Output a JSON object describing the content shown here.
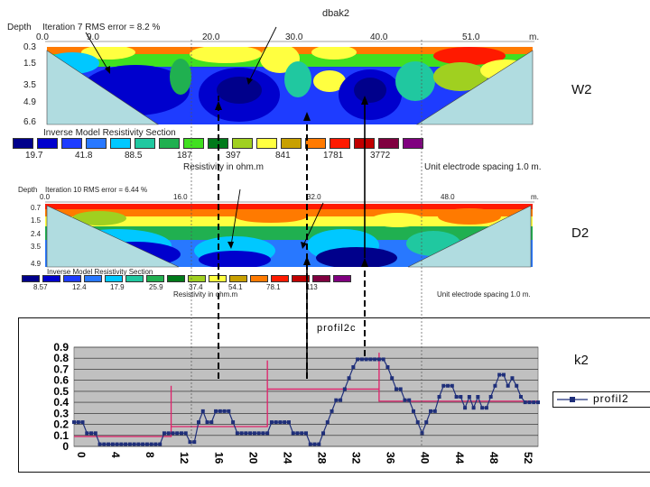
{
  "top_section": {
    "title": "dbak2",
    "depth_label": "Depth",
    "iteration_text": "Iteration 7 RMS error = 8.2 %",
    "distance_ticks": [
      "0.0",
      "9.0",
      "20.0",
      "30.0",
      "40.0",
      "51.0"
    ],
    "unit_m": "m.",
    "depth_ticks": [
      "0.3",
      "1.5",
      "3.5",
      "4.9",
      "6.6"
    ],
    "section_title": "Inverse Model Resistivity Section",
    "legend_values": [
      "19.7",
      "41.8",
      "88.5",
      "187",
      "397",
      "841",
      "1781",
      "3772"
    ],
    "legend_colors": [
      "#00008b",
      "#0000cd",
      "#1e3cff",
      "#2878ff",
      "#00c8ff",
      "#20c8a0",
      "#20b050",
      "#40e020",
      "#007a1a",
      "#a0d020",
      "#ffff40",
      "#c8a000",
      "#ff7a00",
      "#ff1a00",
      "#c00000",
      "#800040",
      "#800080"
    ],
    "resistivity_label": "Resistivity in ohm.m",
    "spacing_label": "Unit electrode spacing 1.0 m.",
    "side_label": "W2"
  },
  "middle_section": {
    "depth_label": "Depth",
    "iteration_text": "Iteration 10 RMS error = 6.44 %",
    "distance_ticks": [
      "0.0",
      "16.0",
      "32.0",
      "48.0"
    ],
    "unit_m": "m.",
    "depth_ticks": [
      "0.7",
      "1.5",
      "2.4",
      "3.5",
      "4.9"
    ],
    "section_title": "Inverse Model Resistivity Section",
    "legend_values": [
      "8.57",
      "12.4",
      "17.9",
      "25.9",
      "37.4",
      "54.1",
      "78.1",
      "113"
    ],
    "legend_colors": [
      "#00008b",
      "#0000cd",
      "#1e3cff",
      "#2878ff",
      "#00c8ff",
      "#20c8a0",
      "#20b050",
      "#007a1a",
      "#a0d020",
      "#ffff40",
      "#c8a000",
      "#ff7a00",
      "#ff1a00",
      "#c00000",
      "#800040",
      "#800080"
    ],
    "resistivity_label": "Resistivity in ohm.m",
    "spacing_label": "Unit electrode spacing 1.0 m.",
    "side_label": "D2"
  },
  "chart_data": {
    "type": "line",
    "title": "profil2c",
    "side_label": "k2",
    "legend_entry": "profil2",
    "ylim": [
      0,
      0.9
    ],
    "y_ticks": [
      "0",
      "0.1",
      "0.2",
      "0.3",
      "0.4",
      "0.5",
      "0.6",
      "0.7",
      "0.8",
      "0.9"
    ],
    "x_ticks": [
      "0",
      "4",
      "8",
      "12",
      "16",
      "20",
      "24",
      "28",
      "32",
      "36",
      "40",
      "44",
      "48",
      "52"
    ],
    "xlim": [
      0,
      54
    ],
    "series": [
      {
        "name": "profil2",
        "color": "#1f2f7a",
        "x": [
          0,
          0.5,
          1,
          1.5,
          2,
          2.5,
          3,
          3.5,
          4,
          4.5,
          5,
          5.5,
          6,
          6.5,
          7,
          7.5,
          8,
          8.5,
          9,
          9.5,
          10,
          10.5,
          11,
          11.5,
          12,
          12.5,
          13,
          13.5,
          14,
          14.5,
          15,
          15.5,
          16,
          16.5,
          17,
          17.5,
          18,
          18.5,
          19,
          19.5,
          20,
          20.5,
          21,
          21.5,
          22,
          22.5,
          23,
          23.5,
          24,
          24.5,
          25,
          25.5,
          26,
          26.5,
          27,
          27.5,
          28,
          28.5,
          29,
          29.5,
          30,
          30.5,
          31,
          31.5,
          32,
          32.5,
          33,
          33.5,
          34,
          34.5,
          35,
          35.5,
          36,
          36.5,
          37,
          37.5,
          38,
          38.5,
          39,
          39.5,
          40,
          40.5,
          41,
          41.5,
          42,
          42.5,
          43,
          43.5,
          44,
          44.5,
          45,
          45.5,
          46,
          46.5,
          47,
          47.5,
          48,
          48.5,
          49,
          49.5,
          50,
          50.5,
          51,
          51.5,
          52,
          52.5,
          53,
          53.5,
          54
        ],
        "values": [
          0.22,
          0.22,
          0.22,
          0.12,
          0.12,
          0.12,
          0.02,
          0.02,
          0.02,
          0.02,
          0.02,
          0.02,
          0.02,
          0.02,
          0.02,
          0.02,
          0.02,
          0.02,
          0.02,
          0.02,
          0.02,
          0.12,
          0.12,
          0.12,
          0.12,
          0.12,
          0.12,
          0.04,
          0.04,
          0.22,
          0.32,
          0.22,
          0.22,
          0.32,
          0.32,
          0.32,
          0.32,
          0.22,
          0.12,
          0.12,
          0.12,
          0.12,
          0.12,
          0.12,
          0.12,
          0.12,
          0.22,
          0.22,
          0.22,
          0.22,
          0.22,
          0.12,
          0.12,
          0.12,
          0.12,
          0.02,
          0.02,
          0.02,
          0.12,
          0.22,
          0.32,
          0.42,
          0.42,
          0.52,
          0.62,
          0.72,
          0.79,
          0.79,
          0.79,
          0.79,
          0.79,
          0.79,
          0.79,
          0.72,
          0.62,
          0.52,
          0.52,
          0.42,
          0.42,
          0.32,
          0.22,
          0.12,
          0.22,
          0.32,
          0.32,
          0.45,
          0.55,
          0.55,
          0.55,
          0.45,
          0.45,
          0.35,
          0.45,
          0.35,
          0.45,
          0.35,
          0.35,
          0.45,
          0.55,
          0.65,
          0.65,
          0.55,
          0.62,
          0.55,
          0.45,
          0.4,
          0.4,
          0.4,
          0.4
        ]
      }
    ],
    "trend_color": "#e0206a",
    "grid": true
  }
}
